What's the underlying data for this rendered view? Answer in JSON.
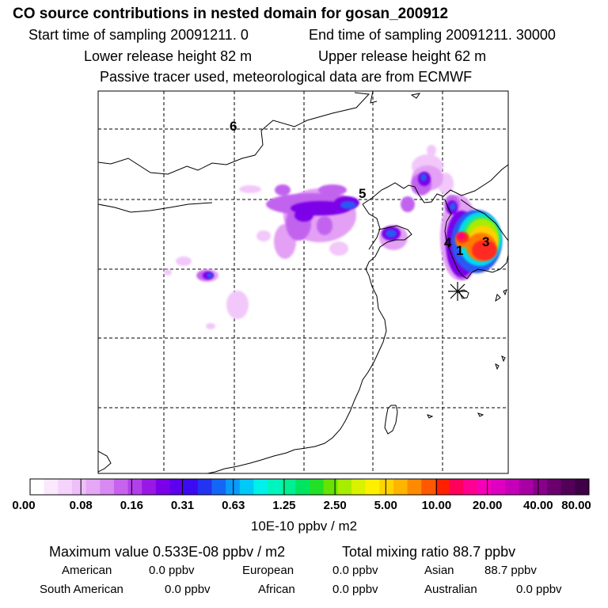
{
  "header": {
    "title": "CO  source contributions in nested domain for gosan_200912",
    "sampling_start": "Start time of sampling 20091211.     0",
    "sampling_end": "End time of sampling 20091211. 30000",
    "release_lower": "Lower release height   82 m",
    "release_upper": "Upper release height   62 m",
    "tracer_note": "Passive tracer used, meteorological data are from ECMWF"
  },
  "map": {
    "labels": [
      {
        "text": "6",
        "name": "marker-label-6"
      },
      {
        "text": "5",
        "name": "marker-label-5"
      },
      {
        "text": "4",
        "name": "marker-label-4"
      },
      {
        "text": "1",
        "name": "marker-label-1"
      },
      {
        "text": "3",
        "name": "marker-label-3"
      }
    ],
    "receptor": "star-marker-icon"
  },
  "colorbar": {
    "colors": [
      "#ffffff",
      "#fbe8fd",
      "#f5d3fb",
      "#eebff8",
      "#e5a8f5",
      "#d889f2",
      "#c763ee",
      "#b140ea",
      "#9a18e6",
      "#7b00e8",
      "#5c00ee",
      "#3b0af2",
      "#2233f2",
      "#1466f5",
      "#0a9af7",
      "#00c9f7",
      "#00f0ea",
      "#00f5be",
      "#00ef92",
      "#00e560",
      "#21e028",
      "#66e300",
      "#a8ec00",
      "#d8f200",
      "#fff000",
      "#ffd500",
      "#ffb400",
      "#ff8a00",
      "#ff5800",
      "#ff2000",
      "#ff005a",
      "#ff0090",
      "#f500b8",
      "#df00c2",
      "#c500b8",
      "#a800a4",
      "#88008a",
      "#6a006e",
      "#520058",
      "#3e0046"
    ],
    "ticks": [
      "0.00",
      "0.08",
      "0.16",
      "0.31",
      "0.63",
      "1.25",
      "2.50",
      "5.00",
      "10.00",
      "20.00",
      "40.00",
      "80.00"
    ],
    "units": "10E-10 ppbv / m2"
  },
  "summary": {
    "max_value": "Maximum value  0.533E-08 ppbv / m2",
    "total_mixing": "Total mixing ratio      88.7 ppbv",
    "american_label": "American",
    "american_value": "0.0 ppbv",
    "european_label": "European",
    "european_value": "0.0 ppbv",
    "asian_label": "Asian",
    "asian_value": "88.7 ppbv",
    "south_american_label": "South American",
    "south_american_value": "0.0 ppbv",
    "african_label": "African",
    "african_value": "0.0 ppbv",
    "australian_label": "Australian",
    "australian_value": "0.0 ppbv"
  }
}
